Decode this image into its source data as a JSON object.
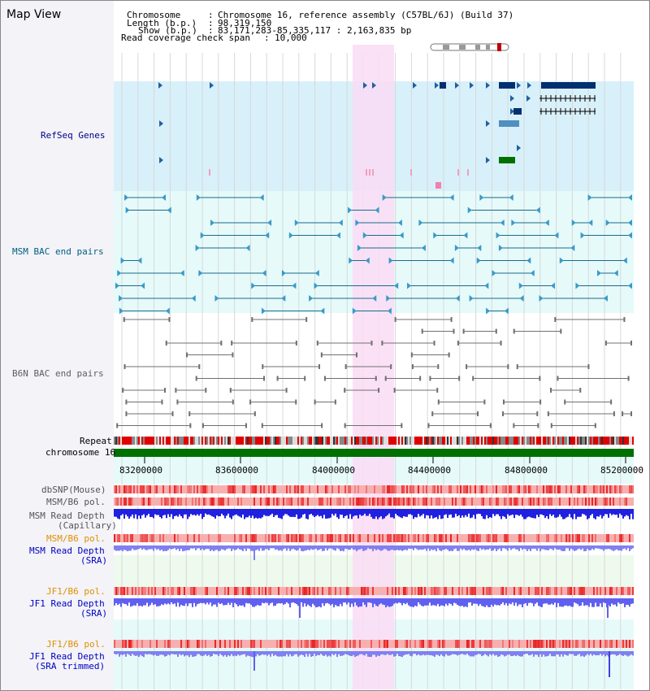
{
  "header": {
    "view_title": "Map View",
    "chromosome_key": "Chromosome",
    "chromosome_value": "Chromosome 16, reference assembly (C57BL/6J) (Build 37)",
    "length_key": "Length (b.p.)",
    "length_value": "98,319,150",
    "show_key": "Show (b.p.)",
    "show_value": "83,171,283-85,335,117 : 2,163,835 bp",
    "span_key": "Read coverage check span",
    "span_value": "10,000"
  },
  "tracks": {
    "refseq": "RefSeq Genes",
    "msm_bac": "MSM BAC end pairs",
    "b6n_bac": "B6N BAC end pairs",
    "repeat": "Repeat",
    "chromosome": "chromosome 16",
    "dbsnp": "dbSNP(Mouse)",
    "msm_b6_pol_1": "MSM/B6 pol.",
    "msm_depth_cap_1": "MSM Read Depth",
    "msm_depth_cap_2": "(Capillary)",
    "msm_b6_pol_2": "MSM/B6 pol.",
    "msm_depth_sra_1": "MSM Read Depth",
    "msm_depth_sra_2": "(SRA)",
    "jf1_b6_pol_1": "JF1/B6 pol.",
    "jf1_depth_sra_1": "JF1 Read Depth",
    "jf1_depth_sra_2": "(SRA)",
    "jf1_b6_pol_2": "JF1/B6 pol.",
    "jf1_depth_trim_1": "JF1 Read Depth",
    "jf1_depth_trim_2": "(SRA trimmed)"
  },
  "axis": {
    "ticks": [
      "83200000",
      "83600000",
      "84000000",
      "84400000",
      "84800000",
      "85200000"
    ]
  },
  "colors": {
    "refseq_bg": "#d8f0fa",
    "bac_bg": "#e6fafa",
    "highlight": "#fadcf5",
    "refseq_label": "#00008b",
    "msm_label": "#006080",
    "b6n_label": "#606060",
    "orange_label": "#e09000",
    "blue_label": "#0000c0",
    "chromosome_bar": "#007000"
  }
}
